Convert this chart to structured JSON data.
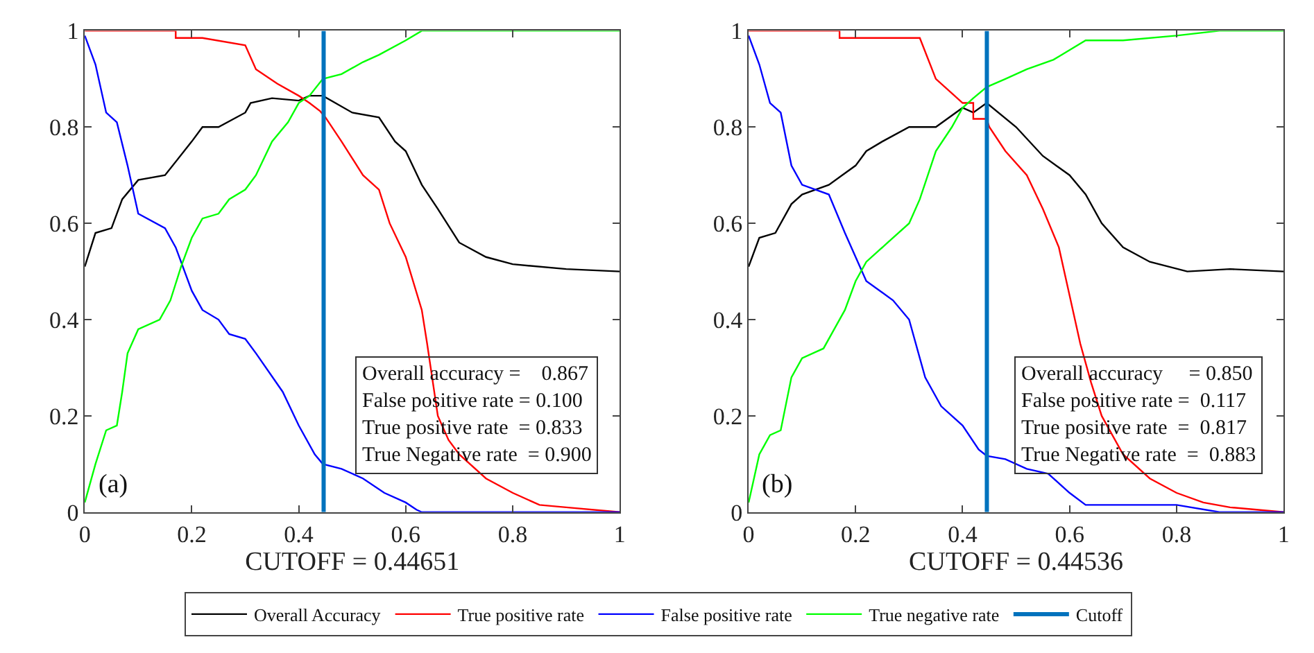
{
  "chart_data": [
    {
      "type": "line",
      "xlabel": "CUTOFF = 0.44651",
      "xlim": [
        0,
        1
      ],
      "ylim": [
        0,
        1
      ],
      "xticks": [
        0,
        0.2,
        0.4,
        0.6,
        0.8,
        1
      ],
      "yticks": [
        0,
        0.2,
        0.4,
        0.6,
        0.8,
        1
      ],
      "legend": "bottom",
      "marker": "none",
      "annotations": [
        "(a)",
        "Overall accuracy =    0.867",
        "False positive rate = 0.100",
        "True positive rate  = 0.833",
        "True Negative rate  = 0.900"
      ],
      "series": [
        {
          "name": "Overall Accuracy",
          "color": "#000000",
          "x": [
            0,
            0.02,
            0.05,
            0.07,
            0.1,
            0.15,
            0.2,
            0.22,
            0.25,
            0.3,
            0.31,
            0.35,
            0.4,
            0.42,
            0.445,
            0.5,
            0.55,
            0.58,
            0.6,
            0.63,
            0.66,
            0.7,
            0.75,
            0.8,
            0.9,
            1
          ],
          "values": [
            0.51,
            0.58,
            0.59,
            0.65,
            0.69,
            0.7,
            0.77,
            0.8,
            0.8,
            0.83,
            0.85,
            0.86,
            0.855,
            0.865,
            0.865,
            0.83,
            0.82,
            0.77,
            0.75,
            0.68,
            0.63,
            0.56,
            0.53,
            0.515,
            0.505,
            0.5
          ]
        },
        {
          "name": "True positive rate",
          "color": "#ff0000",
          "x": [
            0,
            0.17,
            0.17,
            0.22,
            0.3,
            0.32,
            0.36,
            0.4,
            0.42,
            0.44,
            0.45,
            0.48,
            0.52,
            0.55,
            0.57,
            0.6,
            0.63,
            0.64,
            0.66,
            0.68,
            0.7,
            0.75,
            0.8,
            0.85,
            0.9,
            1
          ],
          "values": [
            1,
            1,
            0.985,
            0.985,
            0.97,
            0.92,
            0.89,
            0.865,
            0.85,
            0.833,
            0.82,
            0.77,
            0.7,
            0.67,
            0.6,
            0.53,
            0.42,
            0.35,
            0.2,
            0.15,
            0.12,
            0.07,
            0.04,
            0.015,
            0.01,
            0
          ]
        },
        {
          "name": "False positive rate",
          "color": "#0000ff",
          "x": [
            0,
            0.02,
            0.04,
            0.06,
            0.08,
            0.1,
            0.15,
            0.17,
            0.2,
            0.22,
            0.25,
            0.27,
            0.3,
            0.32,
            0.37,
            0.4,
            0.43,
            0.445,
            0.48,
            0.52,
            0.56,
            0.6,
            0.62,
            0.63,
            1
          ],
          "values": [
            0.99,
            0.93,
            0.83,
            0.81,
            0.72,
            0.62,
            0.59,
            0.55,
            0.46,
            0.42,
            0.4,
            0.37,
            0.36,
            0.33,
            0.25,
            0.18,
            0.12,
            0.1,
            0.09,
            0.07,
            0.04,
            0.02,
            0.005,
            0,
            0
          ]
        },
        {
          "name": "True negative rate",
          "color": "#00ff00",
          "x": [
            0,
            0.02,
            0.04,
            0.06,
            0.07,
            0.08,
            0.1,
            0.14,
            0.16,
            0.18,
            0.2,
            0.22,
            0.25,
            0.27,
            0.3,
            0.32,
            0.35,
            0.38,
            0.4,
            0.42,
            0.445,
            0.48,
            0.52,
            0.55,
            0.6,
            0.63,
            1
          ],
          "values": [
            0.02,
            0.1,
            0.17,
            0.18,
            0.25,
            0.33,
            0.38,
            0.4,
            0.44,
            0.51,
            0.57,
            0.61,
            0.62,
            0.65,
            0.67,
            0.7,
            0.77,
            0.81,
            0.85,
            0.865,
            0.9,
            0.91,
            0.935,
            0.95,
            0.98,
            1,
            1
          ]
        },
        {
          "name": "Cutoff",
          "color": "#0072bd",
          "x": [
            0.44651,
            0.44651
          ],
          "values": [
            0,
            1
          ]
        }
      ]
    },
    {
      "type": "line",
      "xlabel": "CUTOFF = 0.44536",
      "xlim": [
        0,
        1
      ],
      "ylim": [
        0,
        1
      ],
      "xticks": [
        0,
        0.2,
        0.4,
        0.6,
        0.8,
        1
      ],
      "yticks": [
        0,
        0.2,
        0.4,
        0.6,
        0.8,
        1
      ],
      "marker": "none",
      "annotations": [
        "(b)",
        "Overall accuracy     = 0.850",
        "False positive rate =  0.117",
        "True positive rate  =  0.817",
        "True Negative rate  =  0.883"
      ],
      "series": [
        {
          "color": "#000000",
          "x": [
            0,
            0.02,
            0.05,
            0.08,
            0.1,
            0.15,
            0.2,
            0.22,
            0.25,
            0.3,
            0.35,
            0.4,
            0.42,
            0.445,
            0.5,
            0.55,
            0.6,
            0.63,
            0.66,
            0.7,
            0.75,
            0.82,
            0.9,
            1
          ],
          "values": [
            0.51,
            0.57,
            0.58,
            0.64,
            0.66,
            0.68,
            0.72,
            0.75,
            0.77,
            0.8,
            0.8,
            0.84,
            0.83,
            0.85,
            0.8,
            0.74,
            0.7,
            0.66,
            0.6,
            0.55,
            0.52,
            0.5,
            0.505,
            0.5
          ]
        },
        {
          "color": "#ff0000",
          "x": [
            0,
            0.17,
            0.17,
            0.32,
            0.35,
            0.38,
            0.4,
            0.42,
            0.42,
            0.445,
            0.45,
            0.48,
            0.52,
            0.55,
            0.58,
            0.6,
            0.62,
            0.64,
            0.66,
            0.7,
            0.75,
            0.8,
            0.85,
            0.9,
            1
          ],
          "values": [
            1,
            1,
            0.985,
            0.985,
            0.9,
            0.87,
            0.85,
            0.85,
            0.817,
            0.817,
            0.8,
            0.75,
            0.7,
            0.63,
            0.55,
            0.45,
            0.35,
            0.27,
            0.2,
            0.12,
            0.07,
            0.04,
            0.02,
            0.01,
            0
          ]
        },
        {
          "color": "#0000ff",
          "x": [
            0,
            0.02,
            0.04,
            0.06,
            0.08,
            0.1,
            0.15,
            0.18,
            0.2,
            0.22,
            0.27,
            0.3,
            0.33,
            0.36,
            0.4,
            0.43,
            0.445,
            0.48,
            0.52,
            0.56,
            0.6,
            0.63,
            0.8,
            0.88,
            1
          ],
          "values": [
            0.99,
            0.93,
            0.85,
            0.83,
            0.72,
            0.68,
            0.66,
            0.58,
            0.53,
            0.48,
            0.44,
            0.4,
            0.28,
            0.22,
            0.18,
            0.13,
            0.117,
            0.11,
            0.09,
            0.08,
            0.04,
            0.015,
            0.015,
            0,
            0
          ]
        },
        {
          "color": "#00ff00",
          "x": [
            0,
            0.02,
            0.04,
            0.06,
            0.08,
            0.1,
            0.14,
            0.16,
            0.18,
            0.2,
            0.22,
            0.26,
            0.3,
            0.32,
            0.35,
            0.38,
            0.4,
            0.42,
            0.445,
            0.48,
            0.52,
            0.57,
            0.63,
            0.7,
            0.8,
            0.88,
            1
          ],
          "values": [
            0.02,
            0.12,
            0.16,
            0.17,
            0.28,
            0.32,
            0.34,
            0.38,
            0.42,
            0.48,
            0.52,
            0.56,
            0.6,
            0.65,
            0.75,
            0.8,
            0.84,
            0.86,
            0.883,
            0.9,
            0.92,
            0.94,
            0.98,
            0.98,
            0.99,
            1,
            1
          ]
        },
        {
          "color": "#0072bd",
          "x": [
            0.44536,
            0.44536
          ],
          "values": [
            0,
            1
          ]
        }
      ]
    }
  ]
}
